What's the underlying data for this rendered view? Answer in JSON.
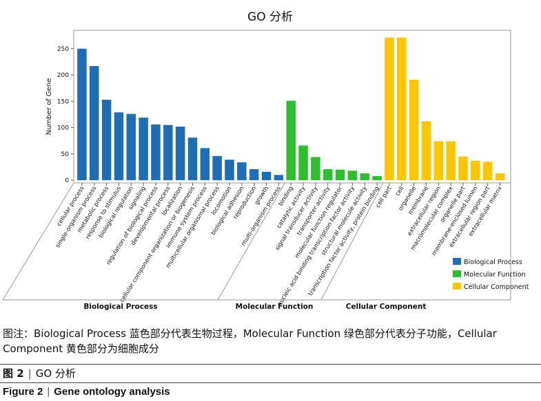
{
  "chart_data": {
    "type": "bar",
    "title": "GO 分析",
    "xlabel": "",
    "ylabel": "Number of Gene",
    "ylim": [
      0,
      285
    ],
    "yticks": [
      0,
      50,
      100,
      150,
      200,
      250
    ],
    "grid": false,
    "legend_position": "bottom-right",
    "series": [
      {
        "name": "Biological Process",
        "color": "#1f6eb5",
        "categories": [
          "cellular process",
          "single-organism process",
          "metabolic process",
          "response to stimulus",
          "biological regulation",
          "signaling",
          "regulation of biological process",
          "developmental process",
          "localization",
          "cellular component organization or biogenesis",
          "immune system process",
          "multicellular organismal process",
          "locomotion",
          "biological adhesion",
          "reproduction",
          "growth",
          "multi-organism process"
        ],
        "values": [
          250,
          217,
          153,
          129,
          126,
          119,
          106,
          105,
          102,
          81,
          61,
          46,
          39,
          34,
          21,
          16,
          10
        ]
      },
      {
        "name": "Molecular Function",
        "color": "#2dbf2d",
        "categories": [
          "binding",
          "catalytic activity",
          "signal transducer activity",
          "transporter activity",
          "molecular function regulator",
          "nucleic acid binding transcription factor activity",
          "structural molecule activity",
          "transcription factor activity, protein binding"
        ],
        "values": [
          151,
          66,
          44,
          21,
          20,
          18,
          13,
          8
        ]
      },
      {
        "name": "Cellular Component",
        "color": "#ffc600",
        "categories": [
          "cell part",
          "cell",
          "organelle",
          "membrane",
          "extracellular region",
          "macromolecular complex",
          "organelle part",
          "membrane-enclosed lumen",
          "extracellular region part",
          "extracellular matrix"
        ],
        "values": [
          271,
          271,
          191,
          112,
          74,
          74,
          45,
          37,
          35,
          13
        ]
      }
    ],
    "group_labels": [
      "Biological Process",
      "Molecular Function",
      "Cellular Component"
    ]
  },
  "captions": {
    "note": "图注：Biological Process 蓝色部分代表生物过程，Molecular Function 绿色部分代表分子功能，Cellular Component 黄色部分为细胞成分",
    "figure_cn_label": "图 2",
    "figure_cn_title": "GO 分析",
    "figure_en_label": "Figure 2",
    "figure_en_title": "Gene ontology analysis",
    "separator": "|"
  }
}
